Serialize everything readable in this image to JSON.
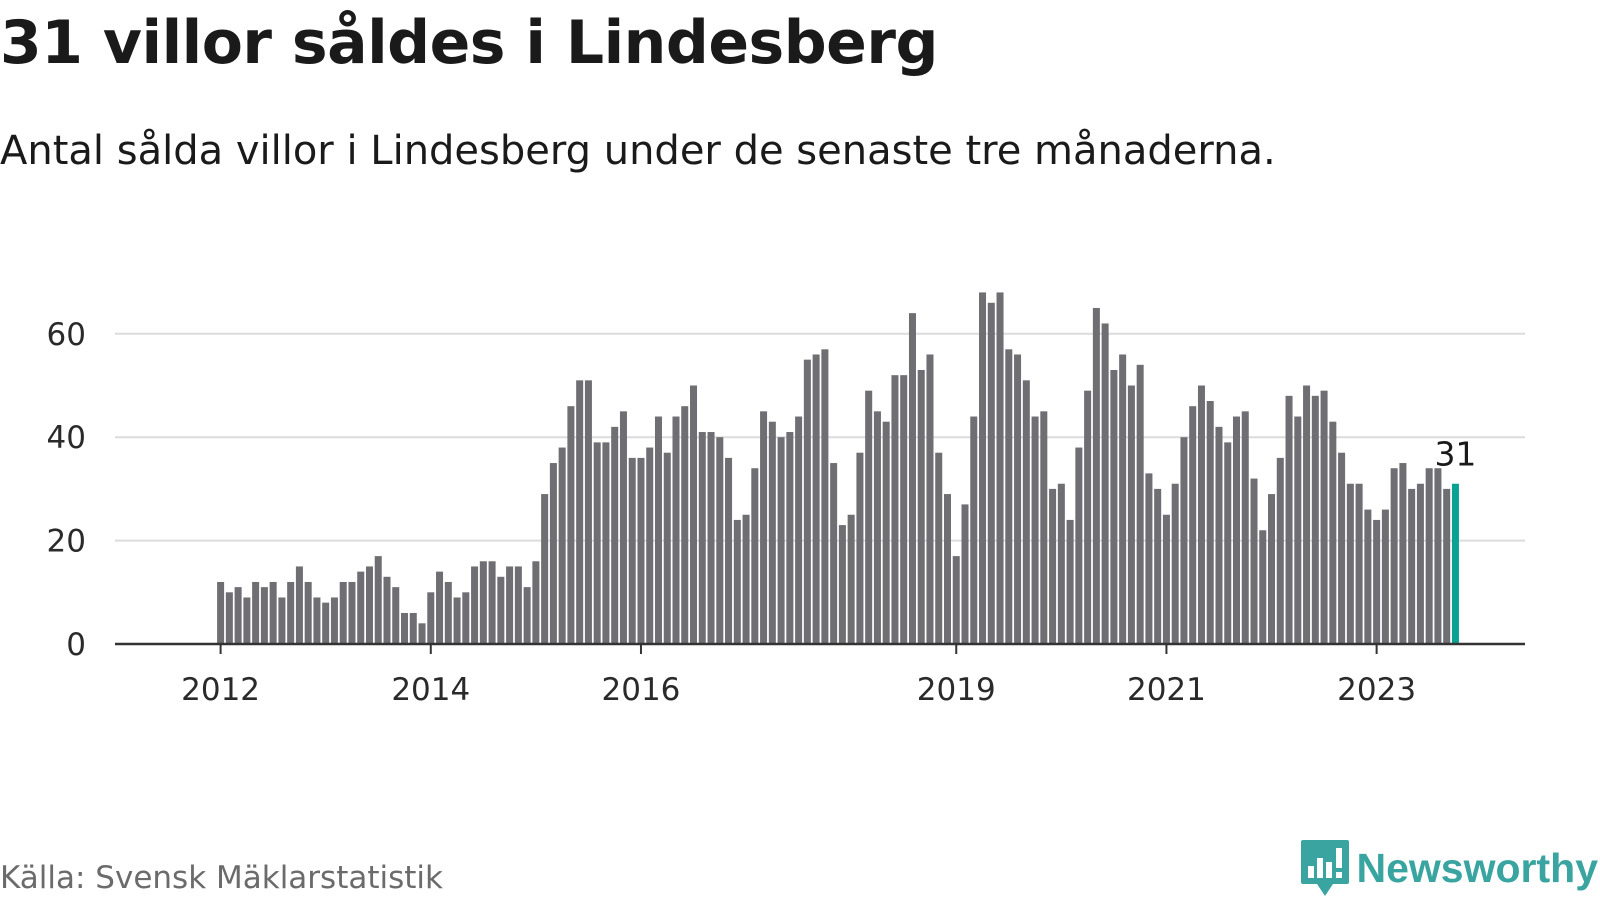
{
  "title": "31 villor såldes i Lindesberg",
  "subtitle": "Antal sålda villor i Lindesberg under de senaste tre månaderna.",
  "source": "Källa: Svensk Mäklarstatistik",
  "brand": {
    "name": "Newsworthy",
    "icon": "newsworthy-logo-icon",
    "color": "#3aa5a0"
  },
  "colors": {
    "bar": "#6e6e73",
    "highlight": "#0aa195",
    "grid": "#dcdcdc",
    "axis": "#333333"
  },
  "chart_data": {
    "type": "bar",
    "x_start": "2012-01",
    "x_end": "2023-09",
    "xlim": [
      "2011-01",
      "2024-06"
    ],
    "ylim": [
      0,
      68
    ],
    "yticks": [
      0,
      20,
      40,
      60
    ],
    "xticks": [
      {
        "date": "2012-01",
        "label": "2012"
      },
      {
        "date": "2014-01",
        "label": "2014"
      },
      {
        "date": "2016-01",
        "label": "2016"
      },
      {
        "date": "2019-01",
        "label": "2019"
      },
      {
        "date": "2021-01",
        "label": "2021"
      },
      {
        "date": "2023-01",
        "label": "2023"
      }
    ],
    "grid": true,
    "values": [
      12,
      10,
      11,
      9,
      12,
      11,
      12,
      9,
      12,
      15,
      12,
      9,
      8,
      9,
      12,
      12,
      14,
      15,
      17,
      13,
      11,
      6,
      6,
      4,
      10,
      14,
      12,
      9,
      10,
      15,
      16,
      16,
      13,
      15,
      15,
      11,
      16,
      29,
      35,
      38,
      46,
      51,
      51,
      39,
      39,
      42,
      45,
      36,
      36,
      38,
      44,
      37,
      44,
      46,
      50,
      41,
      41,
      40,
      36,
      24,
      25,
      34,
      45,
      43,
      40,
      41,
      44,
      55,
      56,
      57,
      35,
      23,
      25,
      37,
      49,
      45,
      43,
      52,
      52,
      64,
      53,
      56,
      37,
      29,
      17,
      27,
      44,
      68,
      66,
      68,
      57,
      56,
      51,
      44,
      45,
      30,
      31,
      24,
      38,
      49,
      65,
      62,
      53,
      56,
      50,
      54,
      33,
      30,
      25,
      31,
      40,
      46,
      50,
      47,
      42,
      39,
      44,
      45,
      32,
      22,
      29,
      36,
      48,
      44,
      50,
      48,
      49,
      43,
      37,
      31,
      31,
      26,
      24,
      26,
      34,
      35,
      30,
      31,
      34,
      34,
      30,
      31
    ],
    "highlight_last": true,
    "last_value_label": "31"
  }
}
